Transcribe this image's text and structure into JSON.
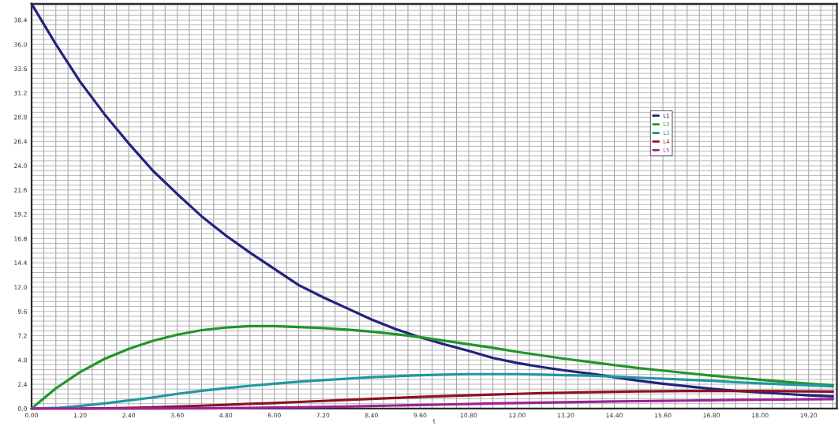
{
  "chart_data": {
    "type": "line",
    "xlabel": "t",
    "x": [
      0,
      0.6,
      1.2,
      1.8,
      2.4,
      3.0,
      3.6,
      4.2,
      4.8,
      5.4,
      6.0,
      6.6,
      7.2,
      7.8,
      8.4,
      9.0,
      9.6,
      10.2,
      10.8,
      11.4,
      12.0,
      12.6,
      13.2,
      13.8,
      14.4,
      15.0,
      15.6,
      16.2,
      16.8,
      17.4,
      18.0,
      18.6,
      19.2,
      19.8
    ],
    "series": [
      {
        "name": "L1",
        "color": "#23237f",
        "values": [
          40.0,
          36.0,
          32.3,
          29.1,
          26.2,
          23.5,
          21.2,
          19.0,
          17.1,
          15.4,
          13.8,
          12.2,
          11.0,
          9.9,
          8.8,
          7.85,
          7.05,
          6.35,
          5.7,
          5.0,
          4.5,
          4.1,
          3.75,
          3.45,
          3.1,
          2.75,
          2.45,
          2.2,
          1.95,
          1.75,
          1.6,
          1.45,
          1.3,
          1.2
        ]
      },
      {
        "name": "L2",
        "color": "#20962a",
        "values": [
          0,
          2.0,
          3.6,
          4.9,
          5.9,
          6.7,
          7.3,
          7.75,
          8.0,
          8.15,
          8.15,
          8.05,
          7.95,
          7.8,
          7.6,
          7.35,
          7.05,
          6.7,
          6.35,
          6.0,
          5.6,
          5.25,
          4.9,
          4.6,
          4.3,
          4.0,
          3.75,
          3.5,
          3.25,
          3.05,
          2.85,
          2.65,
          2.45,
          2.3
        ]
      },
      {
        "name": "L3",
        "color": "#22979f",
        "values": [
          0,
          0.05,
          0.25,
          0.5,
          0.8,
          1.1,
          1.45,
          1.75,
          2.0,
          2.25,
          2.45,
          2.65,
          2.8,
          2.95,
          3.1,
          3.2,
          3.3,
          3.35,
          3.4,
          3.4,
          3.4,
          3.35,
          3.3,
          3.25,
          3.15,
          3.05,
          2.95,
          2.85,
          2.75,
          2.6,
          2.5,
          2.4,
          2.3,
          2.2
        ]
      },
      {
        "name": "L4",
        "color": "#8a1424",
        "values": [
          null,
          null,
          0.01,
          0.03,
          0.06,
          0.12,
          0.2,
          0.28,
          0.37,
          0.46,
          0.55,
          0.65,
          0.75,
          0.85,
          0.95,
          1.05,
          1.15,
          1.23,
          1.31,
          1.38,
          1.45,
          1.52,
          1.57,
          1.62,
          1.66,
          1.7,
          1.72,
          1.74,
          1.74,
          1.74,
          1.73,
          1.71,
          1.69,
          1.67
        ]
      },
      {
        "name": "L5",
        "color": "#9c2494",
        "values": [
          0,
          0,
          0,
          0,
          0,
          0,
          0.01,
          0.02,
          0.04,
          0.06,
          0.09,
          0.12,
          0.16,
          0.2,
          0.25,
          0.3,
          0.35,
          0.4,
          0.45,
          0.5,
          0.54,
          0.58,
          0.62,
          0.66,
          0.7,
          0.73,
          0.76,
          0.79,
          0.82,
          0.85,
          0.87,
          0.89,
          0.91,
          0.93
        ]
      }
    ],
    "xlim": [
      0,
      19.9
    ],
    "ylim": [
      0,
      40
    ],
    "xticks": [
      {
        "value": 0,
        "label": "0.00"
      },
      {
        "value": 1.2,
        "label": "1.20"
      },
      {
        "value": 2.4,
        "label": "2.40"
      },
      {
        "value": 3.6,
        "label": "3.60"
      },
      {
        "value": 4.8,
        "label": "4.80"
      },
      {
        "value": 6.0,
        "label": "6.00"
      },
      {
        "value": 7.2,
        "label": "7.20"
      },
      {
        "value": 8.4,
        "label": "8.40"
      },
      {
        "value": 9.6,
        "label": "9.60"
      },
      {
        "value": 10.8,
        "label": "10.80"
      },
      {
        "value": 12.0,
        "label": "12.00"
      },
      {
        "value": 13.2,
        "label": "13.20"
      },
      {
        "value": 14.4,
        "label": "14.40"
      },
      {
        "value": 15.6,
        "label": "15.60"
      },
      {
        "value": 16.8,
        "label": "16.80"
      },
      {
        "value": 18.0,
        "label": "18.00"
      },
      {
        "value": 19.2,
        "label": "19.20"
      }
    ],
    "yticks": [
      {
        "value": 0,
        "label": "0.0"
      },
      {
        "value": 2.4,
        "label": "2.4"
      },
      {
        "value": 4.8,
        "label": "4.8"
      },
      {
        "value": 7.2,
        "label": "7.2"
      },
      {
        "value": 9.6,
        "label": "9.6"
      },
      {
        "value": 12.0,
        "label": "12.0"
      },
      {
        "value": 14.4,
        "label": "14.4"
      },
      {
        "value": 16.8,
        "label": "16.8"
      },
      {
        "value": 19.2,
        "label": "19.2"
      },
      {
        "value": 21.6,
        "label": "21.6"
      },
      {
        "value": 24.0,
        "label": "24.0"
      },
      {
        "value": 26.4,
        "label": "26.4"
      },
      {
        "value": 28.8,
        "label": "28.8"
      },
      {
        "value": 31.2,
        "label": "31.2"
      },
      {
        "value": 33.6,
        "label": "33.6"
      },
      {
        "value": 36.0,
        "label": "36.0"
      },
      {
        "value": 38.4,
        "label": "38.4"
      }
    ],
    "grid": true,
    "legend": "right"
  }
}
